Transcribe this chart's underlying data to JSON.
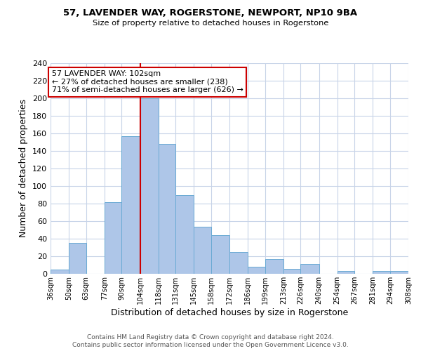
{
  "title": "57, LAVENDER WAY, ROGERSTONE, NEWPORT, NP10 9BA",
  "subtitle": "Size of property relative to detached houses in Rogerstone",
  "xlabel": "Distribution of detached houses by size in Rogerstone",
  "ylabel": "Number of detached properties",
  "bin_edges": [
    36,
    50,
    63,
    77,
    90,
    104,
    118,
    131,
    145,
    158,
    172,
    186,
    199,
    213,
    226,
    240,
    254,
    267,
    281,
    294,
    308
  ],
  "bar_heights": [
    5,
    35,
    0,
    82,
    157,
    200,
    148,
    90,
    54,
    44,
    25,
    8,
    17,
    6,
    11,
    0,
    3,
    0,
    3,
    3
  ],
  "bar_color": "#aec6e8",
  "bar_edge_color": "#6aaad4",
  "property_line_x": 104,
  "annotation_title": "57 LAVENDER WAY: 102sqm",
  "annotation_line1": "← 27% of detached houses are smaller (238)",
  "annotation_line2": "71% of semi-detached houses are larger (626) →",
  "annotation_box_color": "#ffffff",
  "annotation_box_edge": "#cc0000",
  "vline_color": "#cc0000",
  "tick_labels": [
    "36sqm",
    "50sqm",
    "63sqm",
    "77sqm",
    "90sqm",
    "104sqm",
    "118sqm",
    "131sqm",
    "145sqm",
    "158sqm",
    "172sqm",
    "186sqm",
    "199sqm",
    "213sqm",
    "226sqm",
    "240sqm",
    "254sqm",
    "267sqm",
    "281sqm",
    "294sqm",
    "308sqm"
  ],
  "ylim": [
    0,
    240
  ],
  "yticks": [
    0,
    20,
    40,
    60,
    80,
    100,
    120,
    140,
    160,
    180,
    200,
    220,
    240
  ],
  "footer_line1": "Contains HM Land Registry data © Crown copyright and database right 2024.",
  "footer_line2": "Contains public sector information licensed under the Open Government Licence v3.0.",
  "background_color": "#ffffff",
  "grid_color": "#c8d4e8"
}
